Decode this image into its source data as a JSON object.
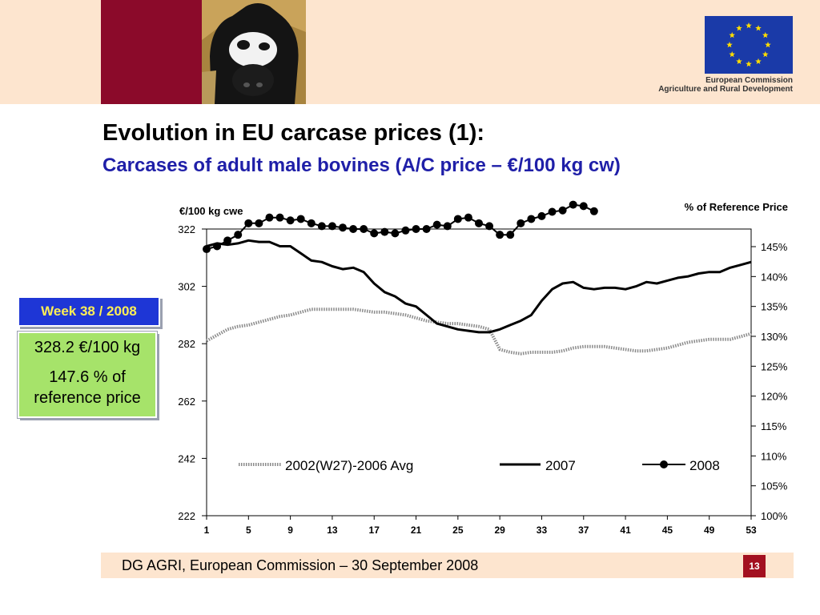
{
  "header": {
    "org_line1": "European Commission",
    "org_line2": "Agriculture and Rural Development"
  },
  "slide": {
    "title": "Evolution in EU carcase prices (1):",
    "subtitle": "Carcases of adult male bovines (A/C price – €/100 kg cw)"
  },
  "callout": {
    "week_label": "Week 38 / 2008",
    "price_value": "328.2 €/100 kg",
    "reference_value": "147.6 % of reference price"
  },
  "footer": {
    "text": "DG AGRI, European Commission – 30 September 2008",
    "page_number": "13"
  },
  "colors": {
    "header_band": "#fde5cf",
    "maroon": "#8b0a2a",
    "subtitle_blue": "#1f1fa8",
    "week_box": "#1e36d6",
    "week_text": "#ffef55",
    "value_box": "#a6e36a",
    "avg_series": "#8a8a8a",
    "series_2007": "#000000",
    "series_2008": "#000000"
  },
  "chart_data": {
    "type": "line",
    "ylabel": "€/100 kg   cwe",
    "y2label": "% of Reference Price",
    "ylim": [
      222,
      322
    ],
    "yticks": [
      222,
      242,
      262,
      282,
      302,
      322
    ],
    "y2lim": [
      100,
      145
    ],
    "y2ticks": [
      "100%",
      "105%",
      "110%",
      "115%",
      "120%",
      "125%",
      "130%",
      "135%",
      "140%",
      "145%"
    ],
    "xlim": [
      1,
      53
    ],
    "xticks": [
      1,
      5,
      9,
      13,
      17,
      21,
      25,
      29,
      33,
      37,
      41,
      45,
      49,
      53
    ],
    "legend_position": "inside-bottom",
    "series": [
      {
        "name": "2002(W27)-2006 Avg",
        "style": "dotted-grey",
        "x": [
          1,
          2,
          3,
          4,
          5,
          6,
          7,
          8,
          9,
          10,
          11,
          12,
          13,
          14,
          15,
          16,
          17,
          18,
          19,
          20,
          21,
          22,
          23,
          24,
          25,
          26,
          27,
          28,
          29,
          30,
          31,
          32,
          33,
          34,
          35,
          36,
          37,
          38,
          39,
          40,
          41,
          42,
          43,
          44,
          45,
          46,
          47,
          48,
          49,
          50,
          51,
          52,
          53
        ],
        "values": [
          283,
          285,
          287,
          288,
          288.5,
          289.5,
          290.5,
          291.5,
          292,
          293,
          294,
          294,
          294,
          294,
          294,
          293.5,
          293,
          293,
          292.5,
          292,
          291,
          290,
          289.5,
          289,
          289,
          288.5,
          288,
          287,
          280,
          279,
          278.5,
          279,
          279,
          279,
          279.5,
          280.5,
          281,
          281,
          281,
          280.5,
          280,
          279.5,
          279.5,
          280,
          280.5,
          281.5,
          282.5,
          283,
          283.5,
          283.5,
          283.5,
          284.5,
          285.5
        ]
      },
      {
        "name": "2007",
        "style": "solid-black",
        "x": [
          1,
          2,
          3,
          4,
          5,
          6,
          7,
          8,
          9,
          10,
          11,
          12,
          13,
          14,
          15,
          16,
          17,
          18,
          19,
          20,
          21,
          22,
          23,
          24,
          25,
          26,
          27,
          28,
          29,
          30,
          31,
          32,
          33,
          34,
          35,
          36,
          37,
          38,
          39,
          40,
          41,
          42,
          43,
          44,
          45,
          46,
          47,
          48,
          49,
          50,
          51,
          52,
          53
        ],
        "values": [
          316,
          317,
          316.5,
          317,
          318,
          317.5,
          317.5,
          316,
          316,
          313.5,
          311,
          310.5,
          309,
          308,
          308.5,
          307,
          303,
          300,
          298.5,
          296,
          295,
          292,
          289,
          288,
          287,
          286.5,
          286,
          286,
          287,
          288.5,
          290,
          292,
          297,
          301,
          303,
          303.5,
          301.5,
          301,
          301.5,
          301.5,
          301,
          302,
          303.5,
          303,
          304,
          305,
          305.5,
          306.5,
          307,
          307,
          308.5,
          309.5,
          310.5
        ]
      },
      {
        "name": "2008",
        "style": "solid-black-markers",
        "x": [
          1,
          2,
          3,
          4,
          5,
          6,
          7,
          8,
          9,
          10,
          11,
          12,
          13,
          14,
          15,
          16,
          17,
          18,
          19,
          20,
          21,
          22,
          23,
          24,
          25,
          26,
          27,
          28,
          29,
          30,
          31,
          32,
          33,
          34,
          35,
          36,
          37,
          38
        ],
        "values": [
          315,
          316,
          318,
          320,
          324,
          324,
          326,
          326,
          325,
          325.5,
          324,
          323,
          323,
          322.5,
          322,
          322,
          320.5,
          321,
          320.5,
          321.5,
          322,
          322,
          323.5,
          323,
          325.5,
          326,
          324,
          323,
          320,
          320,
          324,
          325.5,
          326.5,
          328,
          328.5,
          330.5,
          330,
          328.2
        ]
      }
    ]
  }
}
